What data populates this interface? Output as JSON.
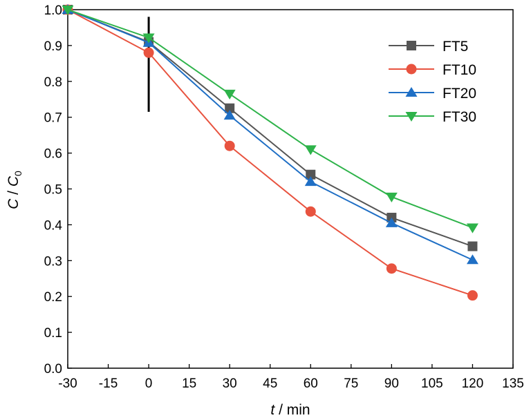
{
  "chart_data": {
    "type": "line",
    "xlabel_parts": {
      "var": "t",
      "sep": " / ",
      "unit": "min"
    },
    "ylabel_parts": {
      "num": "C",
      "sep": " / ",
      "den": "C",
      "den_sub": "0"
    },
    "xlim": [
      -30,
      135
    ],
    "ylim": [
      0.0,
      1.0
    ],
    "xticks": [
      "-30",
      "-15",
      "0",
      "15",
      "30",
      "45",
      "60",
      "75",
      "90",
      "105",
      "120",
      "135"
    ],
    "yticks": [
      "0.0",
      "0.1",
      "0.2",
      "0.3",
      "0.4",
      "0.5",
      "0.6",
      "0.7",
      "0.8",
      "0.9",
      "1.0"
    ],
    "grid": false,
    "legend_position": "top-right",
    "marker_line": {
      "x": 0,
      "y_from": 0.715,
      "y_to": 0.98
    },
    "x": [
      -30,
      0,
      30,
      60,
      90,
      120
    ],
    "series": [
      {
        "name": "FT5",
        "marker": "square",
        "color": "#555555",
        "values": [
          1.0,
          0.91,
          0.725,
          0.54,
          0.42,
          0.34
        ]
      },
      {
        "name": "FT10",
        "marker": "circle",
        "color": "#E8533F",
        "values": [
          1.0,
          0.88,
          0.62,
          0.437,
          0.278,
          0.203
        ]
      },
      {
        "name": "FT20",
        "marker": "triangle-up",
        "color": "#1F6FC5",
        "values": [
          1.0,
          0.908,
          0.705,
          0.52,
          0.405,
          0.302
        ]
      },
      {
        "name": "FT30",
        "marker": "triangle-down",
        "color": "#2EB34A",
        "values": [
          1.0,
          0.922,
          0.765,
          0.61,
          0.478,
          0.392
        ]
      }
    ]
  }
}
